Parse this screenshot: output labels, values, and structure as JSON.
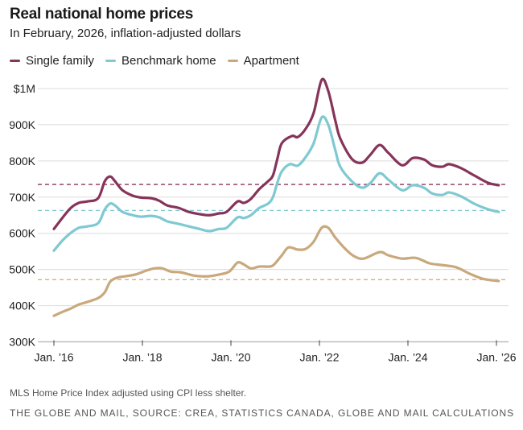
{
  "title": "Real national home prices",
  "subtitle": "In February, 2026, inflation-adjusted dollars",
  "note": "MLS Home Price Index adjusted using CPI less shelter.",
  "source": "THE GLOBE AND MAIL, SOURCE: CREA, STATISTICS CANADA, GLOBE AND MAIL CALCULATIONS",
  "chart_data": {
    "type": "line",
    "title": "Real national home prices",
    "subtitle": "In February, 2026, inflation-adjusted dollars",
    "xlabel": "",
    "ylabel": "",
    "x_unit": "decimal year",
    "y_unit": "thousand dollars",
    "xlim": [
      2016,
      2026
    ],
    "ylim": [
      300,
      1000
    ],
    "grid": true,
    "legend_placement": "top-left",
    "y_ticks": [
      {
        "value": 1000,
        "label": "$1M"
      },
      {
        "value": 900,
        "label": "900K"
      },
      {
        "value": 800,
        "label": "800K"
      },
      {
        "value": 700,
        "label": "700K"
      },
      {
        "value": 600,
        "label": "600K"
      },
      {
        "value": 500,
        "label": "500K"
      },
      {
        "value": 400,
        "label": "400K"
      },
      {
        "value": 300,
        "label": "300K"
      }
    ],
    "x_ticks": [
      {
        "value": 2016,
        "label": "Jan. ’16"
      },
      {
        "value": 2018,
        "label": "Jan. ’18"
      },
      {
        "value": 2020,
        "label": "Jan. ’20"
      },
      {
        "value": 2022,
        "label": "Jan. ’22"
      },
      {
        "value": 2024,
        "label": "Jan. ’24"
      },
      {
        "value": 2026,
        "label": "Jan. ’26"
      }
    ],
    "series": [
      {
        "name": "Single family",
        "color": "#86345a",
        "reference_line": 735,
        "points": [
          [
            2016.0,
            612
          ],
          [
            2016.2,
            644
          ],
          [
            2016.38,
            670
          ],
          [
            2016.56,
            684
          ],
          [
            2016.75,
            688
          ],
          [
            2017.0,
            697
          ],
          [
            2017.15,
            744
          ],
          [
            2017.27,
            757
          ],
          [
            2017.38,
            744
          ],
          [
            2017.55,
            719
          ],
          [
            2017.78,
            704
          ],
          [
            2017.96,
            699
          ],
          [
            2018.2,
            697
          ],
          [
            2018.38,
            690
          ],
          [
            2018.56,
            677
          ],
          [
            2018.82,
            670
          ],
          [
            2019.05,
            659
          ],
          [
            2019.29,
            653
          ],
          [
            2019.51,
            650
          ],
          [
            2019.73,
            655
          ],
          [
            2019.9,
            659
          ],
          [
            2020.15,
            688
          ],
          [
            2020.29,
            684
          ],
          [
            2020.45,
            695
          ],
          [
            2020.64,
            722
          ],
          [
            2020.84,
            744
          ],
          [
            2020.95,
            760
          ],
          [
            2021.05,
            806
          ],
          [
            2021.15,
            849
          ],
          [
            2021.38,
            869
          ],
          [
            2021.51,
            866
          ],
          [
            2021.69,
            889
          ],
          [
            2021.87,
            933
          ],
          [
            2022.05,
            1024
          ],
          [
            2022.2,
            993
          ],
          [
            2022.36,
            911
          ],
          [
            2022.47,
            862
          ],
          [
            2022.73,
            806
          ],
          [
            2022.96,
            795
          ],
          [
            2023.15,
            817
          ],
          [
            2023.36,
            844
          ],
          [
            2023.56,
            822
          ],
          [
            2023.87,
            788
          ],
          [
            2024.11,
            808
          ],
          [
            2024.36,
            804
          ],
          [
            2024.55,
            788
          ],
          [
            2024.78,
            784
          ],
          [
            2024.93,
            791
          ],
          [
            2025.2,
            780
          ],
          [
            2025.51,
            759
          ],
          [
            2025.82,
            739
          ],
          [
            2026.05,
            733
          ]
        ]
      },
      {
        "name": "Benchmark home",
        "color": "#7ec9d2",
        "reference_line": 663,
        "points": [
          [
            2016.0,
            552
          ],
          [
            2016.2,
            581
          ],
          [
            2016.38,
            601
          ],
          [
            2016.56,
            615
          ],
          [
            2016.75,
            619
          ],
          [
            2017.0,
            628
          ],
          [
            2017.15,
            666
          ],
          [
            2017.27,
            682
          ],
          [
            2017.38,
            677
          ],
          [
            2017.55,
            659
          ],
          [
            2017.78,
            650
          ],
          [
            2017.96,
            646
          ],
          [
            2018.2,
            648
          ],
          [
            2018.38,
            644
          ],
          [
            2018.56,
            633
          ],
          [
            2018.82,
            626
          ],
          [
            2019.05,
            619
          ],
          [
            2019.29,
            612
          ],
          [
            2019.51,
            606
          ],
          [
            2019.73,
            612
          ],
          [
            2019.9,
            615
          ],
          [
            2020.15,
            644
          ],
          [
            2020.29,
            642
          ],
          [
            2020.45,
            650
          ],
          [
            2020.64,
            670
          ],
          [
            2020.84,
            682
          ],
          [
            2020.95,
            700
          ],
          [
            2021.05,
            740
          ],
          [
            2021.15,
            771
          ],
          [
            2021.33,
            791
          ],
          [
            2021.51,
            787
          ],
          [
            2021.69,
            811
          ],
          [
            2021.87,
            849
          ],
          [
            2022.05,
            920
          ],
          [
            2022.2,
            900
          ],
          [
            2022.36,
            829
          ],
          [
            2022.47,
            784
          ],
          [
            2022.73,
            744
          ],
          [
            2022.96,
            726
          ],
          [
            2023.15,
            739
          ],
          [
            2023.36,
            766
          ],
          [
            2023.56,
            748
          ],
          [
            2023.87,
            719
          ],
          [
            2024.11,
            733
          ],
          [
            2024.36,
            726
          ],
          [
            2024.55,
            710
          ],
          [
            2024.78,
            706
          ],
          [
            2024.93,
            713
          ],
          [
            2025.2,
            702
          ],
          [
            2025.51,
            681
          ],
          [
            2025.82,
            666
          ],
          [
            2026.05,
            659
          ]
        ]
      },
      {
        "name": "Apartment",
        "color": "#c9a87c",
        "reference_line": 472,
        "points": [
          [
            2016.0,
            372
          ],
          [
            2016.2,
            383
          ],
          [
            2016.38,
            392
          ],
          [
            2016.56,
            403
          ],
          [
            2016.75,
            410
          ],
          [
            2017.0,
            421
          ],
          [
            2017.15,
            437
          ],
          [
            2017.27,
            466
          ],
          [
            2017.42,
            477
          ],
          [
            2017.6,
            481
          ],
          [
            2017.84,
            486
          ],
          [
            2018.09,
            497
          ],
          [
            2018.27,
            503
          ],
          [
            2018.45,
            503
          ],
          [
            2018.64,
            494
          ],
          [
            2018.87,
            492
          ],
          [
            2019.17,
            483
          ],
          [
            2019.47,
            481
          ],
          [
            2019.73,
            486
          ],
          [
            2019.96,
            494
          ],
          [
            2020.15,
            519
          ],
          [
            2020.29,
            514
          ],
          [
            2020.45,
            503
          ],
          [
            2020.64,
            508
          ],
          [
            2020.84,
            508
          ],
          [
            2020.96,
            512
          ],
          [
            2021.15,
            539
          ],
          [
            2021.3,
            561
          ],
          [
            2021.51,
            555
          ],
          [
            2021.69,
            557
          ],
          [
            2021.87,
            577
          ],
          [
            2022.05,
            615
          ],
          [
            2022.2,
            615
          ],
          [
            2022.36,
            588
          ],
          [
            2022.6,
            555
          ],
          [
            2022.78,
            537
          ],
          [
            2023.0,
            530
          ],
          [
            2023.36,
            548
          ],
          [
            2023.56,
            539
          ],
          [
            2023.87,
            530
          ],
          [
            2024.18,
            532
          ],
          [
            2024.49,
            517
          ],
          [
            2024.78,
            512
          ],
          [
            2025.09,
            506
          ],
          [
            2025.4,
            488
          ],
          [
            2025.7,
            474
          ],
          [
            2026.05,
            468
          ]
        ]
      }
    ]
  }
}
